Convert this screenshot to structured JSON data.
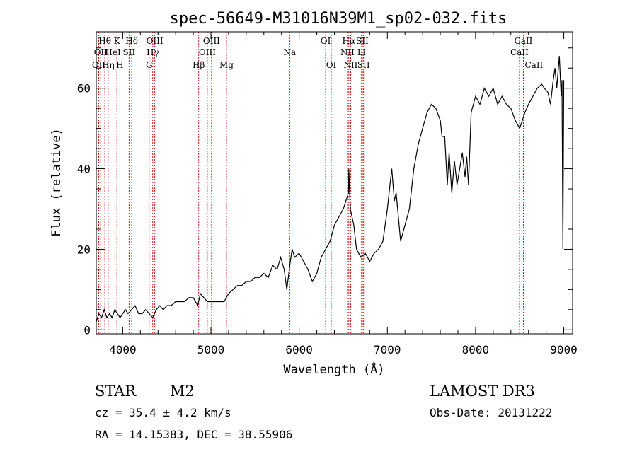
{
  "chart_data": {
    "type": "line",
    "title": "spec-56649-M31016N39M1_sp02-032.fits",
    "xlabel": "Wavelength (Å)",
    "ylabel": "Flux (relative)",
    "xlim": [
      3700,
      9100
    ],
    "ylim": [
      -1,
      74
    ],
    "xticks": [
      4000,
      5000,
      6000,
      7000,
      8000,
      9000
    ],
    "yticks": [
      0,
      20,
      40,
      60
    ],
    "series": [
      {
        "name": "spectrum",
        "x": [
          3700,
          3730,
          3760,
          3790,
          3820,
          3850,
          3880,
          3910,
          3940,
          3970,
          4000,
          4030,
          4060,
          4100,
          4140,
          4180,
          4220,
          4260,
          4300,
          4340,
          4380,
          4420,
          4460,
          4500,
          4550,
          4600,
          4650,
          4700,
          4750,
          4800,
          4850,
          4880,
          4920,
          4960,
          5000,
          5050,
          5100,
          5150,
          5200,
          5250,
          5300,
          5350,
          5400,
          5450,
          5500,
          5550,
          5600,
          5650,
          5700,
          5750,
          5790,
          5830,
          5860,
          5900,
          5920,
          5950,
          6000,
          6050,
          6100,
          6150,
          6200,
          6250,
          6300,
          6350,
          6400,
          6450,
          6500,
          6530,
          6560,
          6563,
          6580,
          6600,
          6620,
          6650,
          6700,
          6750,
          6800,
          6850,
          6900,
          6950,
          7000,
          7030,
          7050,
          7080,
          7100,
          7150,
          7200,
          7250,
          7300,
          7350,
          7400,
          7450,
          7500,
          7550,
          7600,
          7620,
          7650,
          7680,
          7700,
          7730,
          7760,
          7790,
          7820,
          7850,
          7880,
          7900,
          7920,
          7950,
          8000,
          8050,
          8100,
          8150,
          8200,
          8250,
          8300,
          8350,
          8400,
          8450,
          8500,
          8530,
          8560,
          8600,
          8650,
          8700,
          8750,
          8780,
          8820,
          8850,
          8880,
          8900,
          8920,
          8950,
          8970,
          8980,
          8990,
          9000
        ],
        "y": [
          2,
          4,
          3,
          5,
          3,
          4,
          3,
          5,
          4,
          3,
          4,
          5,
          4,
          5,
          6,
          4,
          4,
          5,
          4,
          3,
          5,
          6,
          5,
          6,
          6,
          7,
          7,
          7,
          8,
          8,
          6,
          9,
          8,
          7,
          7,
          7,
          7,
          7,
          9,
          10,
          11,
          11,
          12,
          12,
          13,
          13,
          14,
          13,
          16,
          15,
          18,
          15,
          10,
          17,
          20,
          18,
          19,
          17,
          15,
          12,
          14,
          18,
          20,
          22,
          26,
          28,
          30,
          32,
          34,
          40,
          30,
          28,
          26,
          20,
          18,
          19,
          17,
          19,
          20,
          22,
          30,
          36,
          40,
          32,
          34,
          22,
          26,
          30,
          40,
          46,
          50,
          54,
          56,
          55,
          52,
          48,
          48,
          36,
          44,
          34,
          42,
          36,
          40,
          44,
          38,
          43,
          36,
          54,
          58,
          56,
          60,
          58,
          60,
          56,
          58,
          56,
          55,
          52,
          50,
          52,
          54,
          56,
          58,
          60,
          61,
          60,
          59,
          56,
          62,
          65,
          60,
          68,
          58,
          62,
          20,
          62
        ]
      }
    ],
    "lines": [
      {
        "wl": 3750,
        "label": "OII",
        "row": 2
      },
      {
        "wl": 3728,
        "label": "OII",
        "row": 3
      },
      {
        "wl": 3797,
        "label": "Hθ",
        "row": 1
      },
      {
        "wl": 3835,
        "label": "Hη",
        "row": 3
      },
      {
        "wl": 3889,
        "label": "HeI",
        "row": 2
      },
      {
        "wl": 3934,
        "label": "K",
        "row": 1
      },
      {
        "wl": 3968,
        "label": "H",
        "row": 3
      },
      {
        "wl": 4072,
        "label": "SII",
        "row": 2
      },
      {
        "wl": 4102,
        "label": "Hδ",
        "row": 1
      },
      {
        "wl": 4300,
        "label": "G",
        "row": 3
      },
      {
        "wl": 4340,
        "label": "Hγ",
        "row": 2
      },
      {
        "wl": 4363,
        "label": "OIII",
        "row": 1
      },
      {
        "wl": 4861,
        "label": "Hβ",
        "row": 3
      },
      {
        "wl": 4959,
        "label": "OIII",
        "row": 2
      },
      {
        "wl": 5007,
        "label": "OIII",
        "row": 1
      },
      {
        "wl": 5176,
        "label": "Mg",
        "row": 3
      },
      {
        "wl": 5893,
        "label": "Na",
        "row": 2
      },
      {
        "wl": 6300,
        "label": "OI",
        "row": 1
      },
      {
        "wl": 6364,
        "label": "OI",
        "row": 3
      },
      {
        "wl": 6548,
        "label": "NII",
        "row": 2
      },
      {
        "wl": 6563,
        "label": "Hα",
        "row": 1
      },
      {
        "wl": 6584,
        "label": "NII",
        "row": 3
      },
      {
        "wl": 6707,
        "label": "Li",
        "row": 2
      },
      {
        "wl": 6717,
        "label": "SII",
        "row": 1
      },
      {
        "wl": 6731,
        "label": "SII",
        "row": 3
      },
      {
        "wl": 8498,
        "label": "CaII",
        "row": 2
      },
      {
        "wl": 8542,
        "label": "CaII",
        "row": 1
      },
      {
        "wl": 8662,
        "label": "CaII",
        "row": 3
      }
    ]
  },
  "info": {
    "object_class": "STAR",
    "subclass": "M2",
    "survey": "LAMOST DR3",
    "cz_line": "cz = 35.4 ± 4.2 km/s",
    "obs_date_line": "Obs-Date: 20131222",
    "coords_line": "RA =  14.15383, DEC =  38.55906"
  },
  "colors": {
    "line_marker": "#cc0000",
    "spectrum": "#000000"
  }
}
